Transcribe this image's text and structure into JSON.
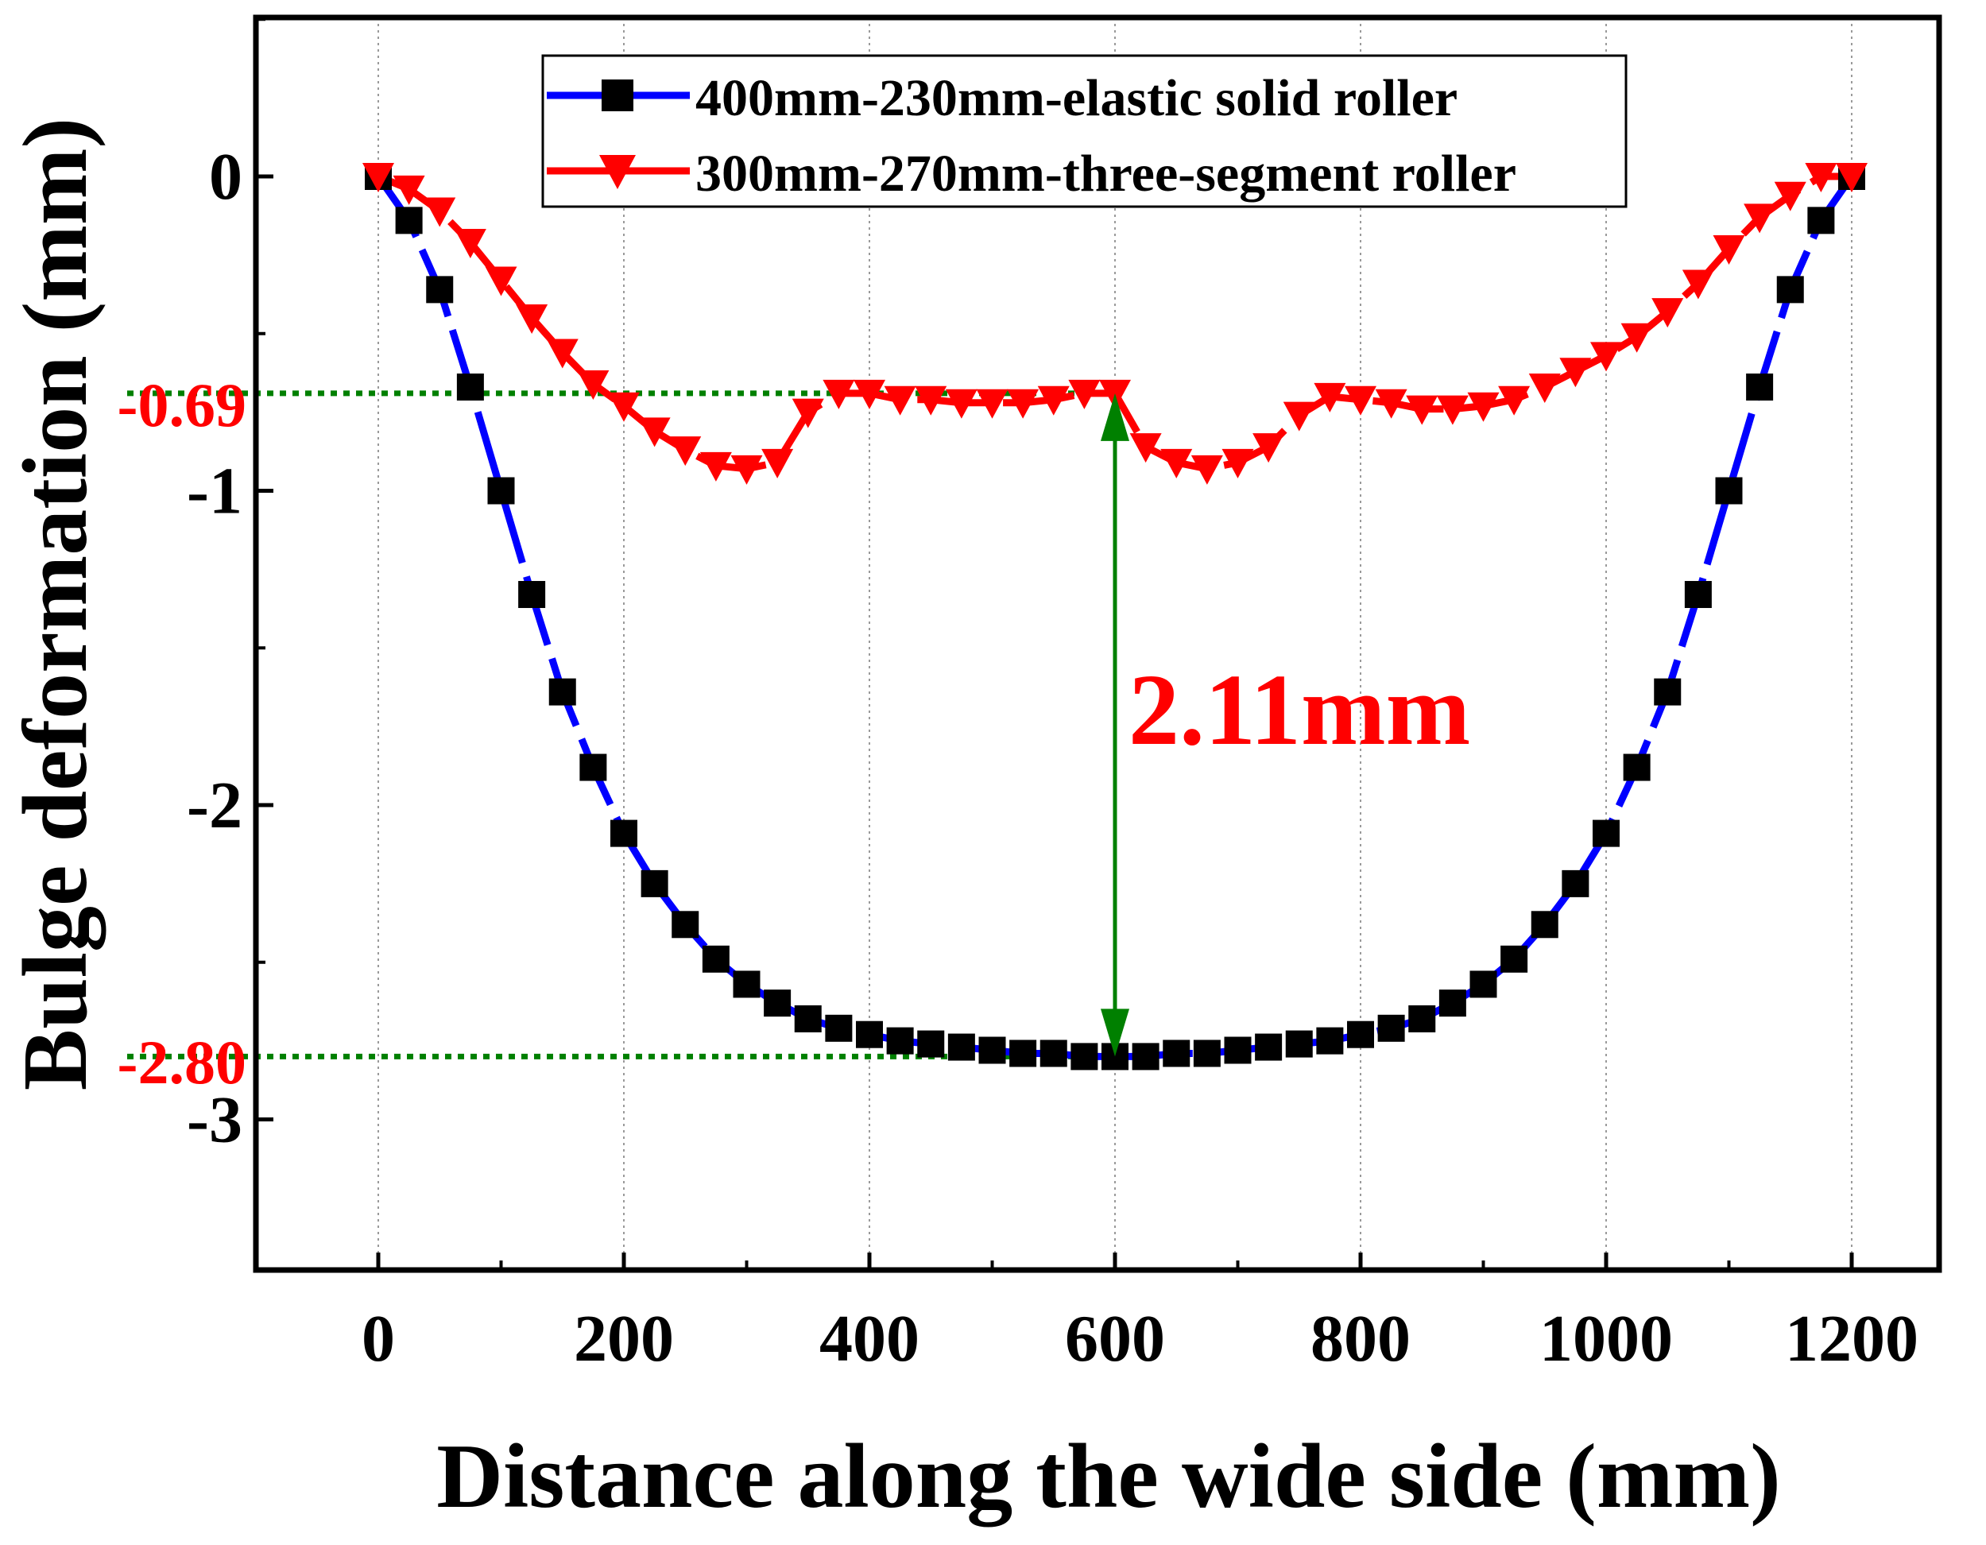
{
  "chart_data": {
    "type": "line",
    "xlabel": "Distance along the wide side (mm)",
    "ylabel": "Bulge deformation (mm)",
    "xlim": [
      -100,
      1270
    ],
    "ylim": [
      -3.5,
      0.5
    ],
    "xticks": [
      0,
      200,
      400,
      600,
      800,
      1000,
      1200
    ],
    "xtick_labels": [
      "0",
      "200",
      "400",
      "600",
      "800",
      "1000",
      "1200"
    ],
    "yticks": [
      0,
      -1,
      -2,
      -3
    ],
    "ytick_labels": [
      "0",
      "-1",
      "-2",
      "-3"
    ],
    "grid": "vertical-dotted",
    "legend_position": "top-center",
    "series": [
      {
        "name": "400mm-230mm-elastic solid roller",
        "line_color": "#0000ff",
        "marker": "square",
        "marker_color": "#000000",
        "x": [
          0,
          25,
          50,
          75,
          100,
          125,
          150,
          175,
          200,
          225,
          250,
          275,
          300,
          325,
          350,
          375,
          400,
          425,
          450,
          475,
          500,
          525,
          550,
          575,
          600,
          625,
          650,
          675,
          700,
          725,
          750,
          775,
          800,
          825,
          850,
          875,
          900,
          925,
          950,
          975,
          1000,
          1025,
          1050,
          1075,
          1100,
          1125,
          1150,
          1175,
          1200
        ],
        "y": [
          0,
          -0.14,
          -0.36,
          -0.67,
          -1.0,
          -1.33,
          -1.64,
          -1.88,
          -2.09,
          -2.25,
          -2.38,
          -2.49,
          -2.57,
          -2.63,
          -2.68,
          -2.71,
          -2.73,
          -2.75,
          -2.76,
          -2.77,
          -2.78,
          -2.79,
          -2.79,
          -2.8,
          -2.8,
          -2.8,
          -2.79,
          -2.79,
          -2.78,
          -2.77,
          -2.76,
          -2.75,
          -2.73,
          -2.71,
          -2.68,
          -2.63,
          -2.57,
          -2.49,
          -2.38,
          -2.25,
          -2.09,
          -1.88,
          -1.64,
          -1.33,
          -1.0,
          -0.67,
          -0.36,
          -0.14,
          0
        ]
      },
      {
        "name": "300mm-270mm-three-segment roller",
        "line_color": "#ff0000",
        "marker": "triangle-down",
        "marker_color": "#ff0000",
        "x": [
          0,
          25,
          50,
          75,
          100,
          125,
          150,
          175,
          200,
          225,
          250,
          275,
          300,
          325,
          350,
          375,
          400,
          425,
          450,
          475,
          500,
          525,
          550,
          575,
          600,
          625,
          650,
          675,
          700,
          725,
          750,
          775,
          800,
          825,
          850,
          875,
          900,
          925,
          950,
          975,
          1000,
          1025,
          1050,
          1075,
          1100,
          1125,
          1150,
          1175,
          1200
        ],
        "y": [
          0,
          -0.04,
          -0.11,
          -0.21,
          -0.33,
          -0.45,
          -0.56,
          -0.66,
          -0.73,
          -0.81,
          -0.87,
          -0.92,
          -0.93,
          -0.91,
          -0.75,
          -0.69,
          -0.69,
          -0.71,
          -0.71,
          -0.72,
          -0.72,
          -0.72,
          -0.71,
          -0.69,
          -0.69,
          -0.86,
          -0.91,
          -0.93,
          -0.91,
          -0.86,
          -0.76,
          -0.7,
          -0.71,
          -0.72,
          -0.74,
          -0.74,
          -0.73,
          -0.71,
          -0.67,
          -0.62,
          -0.57,
          -0.51,
          -0.43,
          -0.34,
          -0.23,
          -0.13,
          -0.06,
          0,
          0
        ]
      }
    ],
    "annotations": {
      "upper_label": "-0.69",
      "upper_value": -0.69,
      "lower_label": "-2.80",
      "lower_value": -2.8,
      "difference_label": "2.11mm",
      "difference_x": 600,
      "annotation_line_color": "#008000",
      "annotation_text_color": "#ff0000"
    }
  }
}
